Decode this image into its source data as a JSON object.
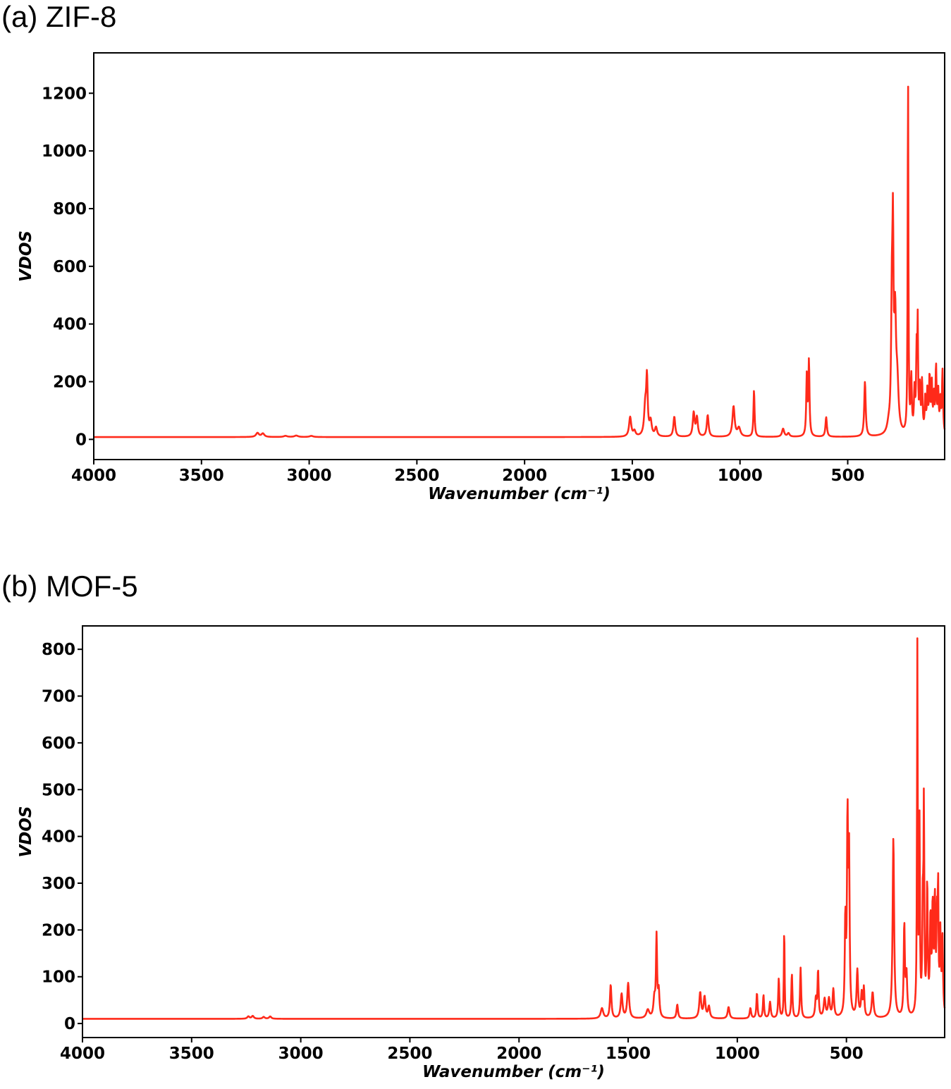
{
  "chart_data": [
    {
      "panel": "(a) ZIF-8",
      "type": "line",
      "xlabel": "Wavenumber (cm⁻¹)",
      "ylabel": "VDOS",
      "xlim": [
        4000,
        50
      ],
      "ylim": [
        -70,
        1340
      ],
      "x_ticks": [
        4000,
        3500,
        3000,
        2500,
        2000,
        1500,
        1000,
        500
      ],
      "y_ticks": [
        0,
        200,
        400,
        600,
        800,
        1000,
        1200
      ],
      "color": "#ff2a1a",
      "baseline": 8,
      "peaks": [
        [
          3240,
          14,
          8
        ],
        [
          3215,
          12,
          8
        ],
        [
          3110,
          4,
          10
        ],
        [
          3060,
          5,
          10
        ],
        [
          2990,
          4,
          10
        ],
        [
          1510,
          68,
          6
        ],
        [
          1490,
          18,
          6
        ],
        [
          1440,
          100,
          6
        ],
        [
          1432,
          190,
          4
        ],
        [
          1415,
          50,
          6
        ],
        [
          1390,
          30,
          6
        ],
        [
          1305,
          70,
          5
        ],
        [
          1215,
          82,
          5
        ],
        [
          1200,
          65,
          5
        ],
        [
          1150,
          75,
          5
        ],
        [
          1030,
          105,
          6
        ],
        [
          1005,
          30,
          8
        ],
        [
          935,
          162,
          3
        ],
        [
          800,
          28,
          6
        ],
        [
          775,
          12,
          6
        ],
        [
          690,
          208,
          3
        ],
        [
          680,
          258,
          3
        ],
        [
          600,
          68,
          4
        ],
        [
          420,
          190,
          4
        ],
        [
          310,
          25,
          8
        ],
        [
          295,
          430,
          4
        ],
        [
          290,
          578,
          3
        ],
        [
          280,
          370,
          5
        ],
        [
          270,
          160,
          7
        ],
        [
          220,
          1262,
          2
        ],
        [
          205,
          190,
          3
        ],
        [
          190,
          140,
          3
        ],
        [
          180,
          280,
          3
        ],
        [
          175,
          335,
          2
        ],
        [
          165,
          150,
          3
        ],
        [
          155,
          175,
          3
        ],
        [
          140,
          120,
          3
        ],
        [
          130,
          145,
          3
        ],
        [
          120,
          190,
          3
        ],
        [
          110,
          175,
          3
        ],
        [
          100,
          125,
          3
        ],
        [
          90,
          225,
          3
        ],
        [
          80,
          140,
          3
        ],
        [
          70,
          110,
          3
        ],
        [
          60,
          220,
          3
        ]
      ]
    },
    {
      "panel": "(b) MOF-5",
      "type": "line",
      "xlabel": "Wavenumber (cm⁻¹)",
      "ylabel": "VDOS",
      "xlim": [
        4000,
        50
      ],
      "ylim": [
        -30,
        850
      ],
      "x_ticks": [
        4000,
        3500,
        3000,
        2500,
        2000,
        1500,
        1000,
        500
      ],
      "y_ticks": [
        0,
        100,
        200,
        300,
        400,
        500,
        600,
        700,
        800
      ],
      "color": "#ff2a1a",
      "baseline": 10,
      "peaks": [
        [
          3240,
          5,
          6
        ],
        [
          3220,
          6,
          6
        ],
        [
          3170,
          4,
          6
        ],
        [
          3140,
          5,
          6
        ],
        [
          1620,
          22,
          7
        ],
        [
          1580,
          72,
          4
        ],
        [
          1530,
          52,
          5
        ],
        [
          1500,
          75,
          5
        ],
        [
          1410,
          18,
          8
        ],
        [
          1380,
          40,
          5
        ],
        [
          1370,
          170,
          3
        ],
        [
          1360,
          55,
          4
        ],
        [
          1275,
          30,
          4
        ],
        [
          1170,
          55,
          5
        ],
        [
          1150,
          45,
          5
        ],
        [
          1130,
          25,
          5
        ],
        [
          1040,
          25,
          5
        ],
        [
          940,
          22,
          4
        ],
        [
          910,
          55,
          3
        ],
        [
          880,
          50,
          3
        ],
        [
          850,
          35,
          4
        ],
        [
          810,
          85,
          3
        ],
        [
          785,
          195,
          2
        ],
        [
          750,
          95,
          3
        ],
        [
          710,
          108,
          3
        ],
        [
          640,
          40,
          4
        ],
        [
          630,
          100,
          3
        ],
        [
          600,
          40,
          5
        ],
        [
          580,
          40,
          5
        ],
        [
          560,
          60,
          4
        ],
        [
          505,
          200,
          3
        ],
        [
          495,
          410,
          3
        ],
        [
          488,
          330,
          3
        ],
        [
          450,
          100,
          4
        ],
        [
          430,
          50,
          4
        ],
        [
          420,
          60,
          3
        ],
        [
          380,
          55,
          5
        ],
        [
          285,
          385,
          4
        ],
        [
          235,
          195,
          3
        ],
        [
          225,
          90,
          4
        ],
        [
          175,
          790,
          2
        ],
        [
          165,
          400,
          2
        ],
        [
          150,
          230,
          3
        ],
        [
          145,
          420,
          2
        ],
        [
          130,
          275,
          3
        ],
        [
          115,
          200,
          3
        ],
        [
          105,
          220,
          3
        ],
        [
          95,
          235,
          3
        ],
        [
          85,
          190,
          3
        ],
        [
          80,
          240,
          2
        ],
        [
          70,
          170,
          3
        ],
        [
          60,
          160,
          3
        ]
      ]
    }
  ]
}
